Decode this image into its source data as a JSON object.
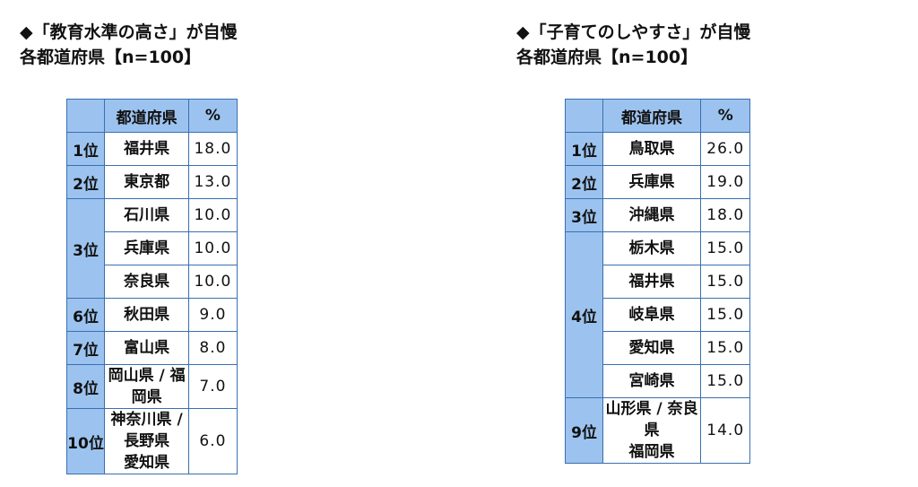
{
  "left": {
    "title_line1": "◆「教育水準の高さ」が自慢",
    "title_line2": "各都道府県【n=100】",
    "header": {
      "rank": "",
      "pref": "都道府県",
      "pct": "%"
    },
    "rows": [
      {
        "rank": "1位",
        "pref": "福井県",
        "pct": "18.0"
      },
      {
        "rank": "2位",
        "pref": "東京都",
        "pct": "13.0"
      },
      {
        "rank": "3位",
        "pref": "石川県",
        "pct": "10.0"
      },
      {
        "rank": "",
        "pref": "兵庫県",
        "pct": "10.0"
      },
      {
        "rank": "",
        "pref": "奈良県",
        "pct": "10.0"
      },
      {
        "rank": "6位",
        "pref": "秋田県",
        "pct": "9.0"
      },
      {
        "rank": "7位",
        "pref": "富山県",
        "pct": "8.0"
      },
      {
        "rank": "8位",
        "pref": "岡山県 / 福岡県",
        "pct": "7.0"
      },
      {
        "rank": "10位",
        "pref_line1": "神奈川県 / 長野県",
        "pref_line2": "愛知県",
        "pct": "6.0"
      }
    ]
  },
  "right": {
    "title_line1": "◆「子育てのしやすさ」が自慢",
    "title_line2": "各都道府県【n=100】",
    "header": {
      "rank": "",
      "pref": "都道府県",
      "pct": "%"
    },
    "rows": [
      {
        "rank": "1位",
        "pref": "鳥取県",
        "pct": "26.0"
      },
      {
        "rank": "2位",
        "pref": "兵庫県",
        "pct": "19.0"
      },
      {
        "rank": "3位",
        "pref": "沖縄県",
        "pct": "18.0"
      },
      {
        "rank": "4位",
        "pref": "栃木県",
        "pct": "15.0"
      },
      {
        "rank": "",
        "pref": "福井県",
        "pct": "15.0"
      },
      {
        "rank": "",
        "pref": "岐阜県",
        "pct": "15.0"
      },
      {
        "rank": "",
        "pref": "愛知県",
        "pct": "15.0"
      },
      {
        "rank": "",
        "pref": "宮崎県",
        "pct": "15.0"
      },
      {
        "rank": "9位",
        "pref_line1": "山形県 / 奈良県",
        "pref_line2": "福岡県",
        "pct": "14.0"
      }
    ]
  }
}
